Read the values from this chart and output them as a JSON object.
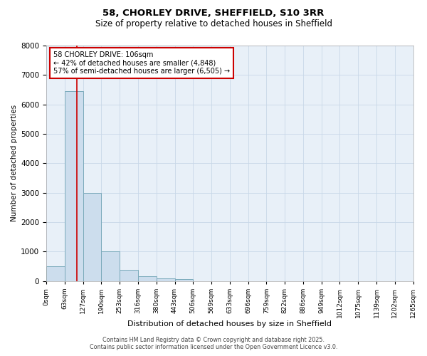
{
  "title_line1": "58, CHORLEY DRIVE, SHEFFIELD, S10 3RR",
  "title_line2": "Size of property relative to detached houses in Sheffield",
  "xlabel": "Distribution of detached houses by size in Sheffield",
  "ylabel": "Number of detached properties",
  "bar_values": [
    500,
    6450,
    3000,
    1000,
    375,
    150,
    100,
    60,
    0,
    0,
    0,
    0,
    0,
    0,
    0,
    0,
    0,
    0,
    0,
    0
  ],
  "bin_edges": [
    0,
    63,
    127,
    190,
    253,
    316,
    380,
    443,
    506,
    569,
    633,
    696,
    759,
    822,
    886,
    949,
    1012,
    1075,
    1139,
    1202,
    1265
  ],
  "bin_labels": [
    "0sqm",
    "63sqm",
    "127sqm",
    "190sqm",
    "253sqm",
    "316sqm",
    "380sqm",
    "443sqm",
    "506sqm",
    "569sqm",
    "633sqm",
    "696sqm",
    "759sqm",
    "822sqm",
    "886sqm",
    "949sqm",
    "1012sqm",
    "1075sqm",
    "1139sqm",
    "1202sqm",
    "1265sqm"
  ],
  "bar_color": "#ccdded",
  "bar_edge_color": "#7aaabb",
  "ylim": [
    0,
    8000
  ],
  "yticks": [
    0,
    1000,
    2000,
    3000,
    4000,
    5000,
    6000,
    7000,
    8000
  ],
  "property_size_sqm": 106,
  "vline_color": "#cc0000",
  "annotation_title": "58 CHORLEY DRIVE: 106sqm",
  "annotation_line2": "← 42% of detached houses are smaller (4,848)",
  "annotation_line3": "57% of semi-detached houses are larger (6,505) →",
  "annotation_box_color": "#cc0000",
  "grid_color": "#c8d8e8",
  "background_color": "#e8f0f8",
  "fig_background": "#ffffff",
  "footer_line1": "Contains HM Land Registry data © Crown copyright and database right 2025.",
  "footer_line2": "Contains public sector information licensed under the Open Government Licence v3.0."
}
